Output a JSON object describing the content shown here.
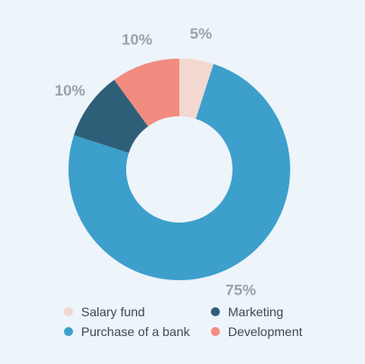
{
  "chart_data": {
    "type": "pie",
    "donut": true,
    "categories": [
      "Salary fund",
      "Purchase of a bank",
      "Marketing",
      "Development"
    ],
    "values": [
      5,
      75,
      10,
      10
    ],
    "labels": [
      "5%",
      "75%",
      "10%",
      "10%"
    ],
    "colors": [
      "#f2d8d0",
      "#3d9fcb",
      "#2e5f79",
      "#f28c80"
    ],
    "legend": "bottom"
  }
}
